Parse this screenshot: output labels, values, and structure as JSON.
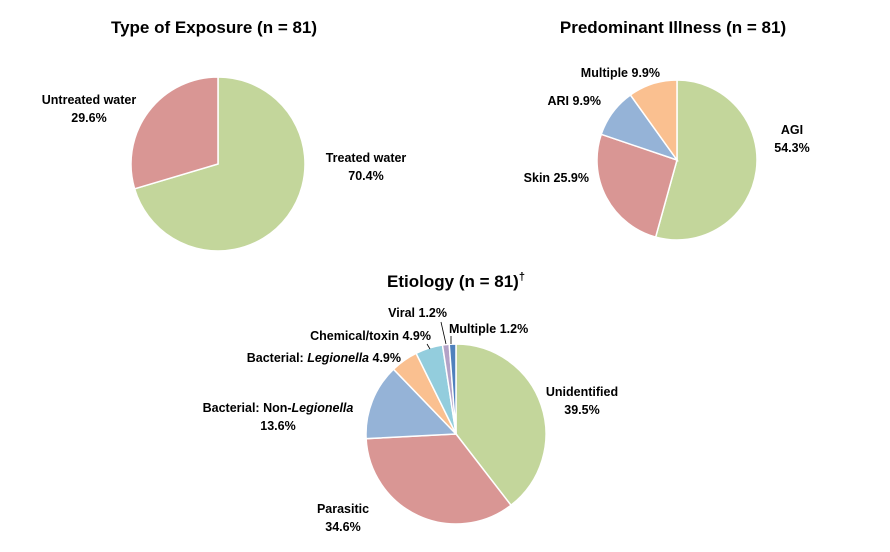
{
  "chart_data": [
    {
      "type": "pie",
      "title": "Type of Exposure  (n = 81)",
      "slices": [
        {
          "label": "Treated water",
          "value": 70.4,
          "value_label": "70.4%",
          "color": "#C3D69B"
        },
        {
          "label": "Untreated water",
          "value": 29.6,
          "value_label": "29.6%",
          "color": "#D99694"
        }
      ]
    },
    {
      "type": "pie",
      "title": "Predominant  Illness (n = 81)",
      "slices": [
        {
          "label": "AGI",
          "value": 54.3,
          "value_label": "54.3%",
          "color": "#C3D69B"
        },
        {
          "label": "Skin",
          "value": 25.9,
          "value_label": "25.9%",
          "color": "#D99694"
        },
        {
          "label": "ARI",
          "value": 9.9,
          "value_label": "9.9%",
          "color": "#95B3D7"
        },
        {
          "label": "Multiple",
          "value": 9.9,
          "value_label": "9.9%",
          "color": "#FAC090"
        }
      ]
    },
    {
      "type": "pie",
      "title": "Etiology  (n = 81)",
      "title_mark": "†",
      "slices": [
        {
          "label": "Unidentified",
          "value": 39.5,
          "value_label": "39.5%",
          "color": "#C3D69B"
        },
        {
          "label": "Parasitic",
          "value": 34.6,
          "value_label": "34.6%",
          "color": "#D99694"
        },
        {
          "label": "Bacterial: Non-Legionella",
          "value": 13.6,
          "value_label": "13.6%",
          "color": "#95B3D7"
        },
        {
          "label": "Bacterial: Legionella",
          "value": 4.9,
          "value_label": "4.9%",
          "color": "#FAC090"
        },
        {
          "label": "Chemical/toxin",
          "value": 4.9,
          "value_label": "4.9%",
          "color": "#93CDDD"
        },
        {
          "label": "Viral",
          "value": 1.2,
          "value_label": "1.2%",
          "color": "#B3A2C7"
        },
        {
          "label": "Multiple",
          "value": 1.2,
          "value_label": "1.2%",
          "color": "#4F81BD"
        }
      ]
    }
  ]
}
